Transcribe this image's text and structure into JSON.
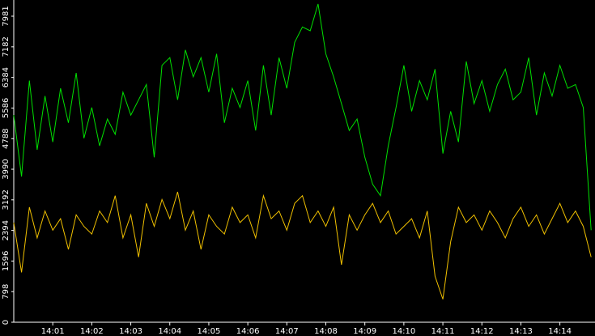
{
  "chart_data": {
    "type": "line",
    "x": [
      0,
      0.2,
      0.4,
      0.6,
      0.8,
      1,
      1.2,
      1.4,
      1.6,
      1.8,
      2,
      2.2,
      2.4,
      2.6,
      2.8,
      3,
      3.2,
      3.4,
      3.6,
      3.8,
      4,
      4.2,
      4.4,
      4.6,
      4.8,
      5,
      5.2,
      5.4,
      5.6,
      5.8,
      6,
      6.2,
      6.4,
      6.6,
      6.8,
      7,
      7.2,
      7.4,
      7.6,
      7.8,
      8,
      8.2,
      8.4,
      8.6,
      8.8,
      9,
      9.2,
      9.4,
      9.6,
      9.8,
      10,
      10.2,
      10.4,
      10.6,
      10.8,
      11,
      11.2,
      11.4,
      11.6,
      11.8,
      12,
      12.2,
      12.4,
      12.6,
      12.8,
      13,
      13.2,
      13.4,
      13.6,
      13.8,
      14,
      14.2,
      14.4,
      14.6,
      14.8
    ],
    "series": [
      {
        "color": "#00e000",
        "values": [
          5400,
          3800,
          6300,
          4500,
          5900,
          4700,
          6100,
          5200,
          6500,
          4800,
          5600,
          4600,
          5300,
          4900,
          6000,
          5400,
          5800,
          6200,
          4300,
          6700,
          6900,
          5800,
          7100,
          6400,
          6900,
          6000,
          7000,
          5200,
          6100,
          5600,
          6300,
          5000,
          6700,
          5400,
          6900,
          6100,
          7300,
          7700,
          7600,
          8300,
          7000,
          6400,
          5700,
          5000,
          5300,
          4300,
          3600,
          3300,
          4600,
          5600,
          6700,
          5500,
          6300,
          5800,
          6600,
          4400,
          5500,
          4700,
          6800,
          5700,
          6300,
          5500,
          6200,
          6600,
          5800,
          6000,
          6900,
          5400,
          6500,
          5900,
          6700,
          6100,
          6200,
          5600,
          2400
        ]
      },
      {
        "color": "#f0c000",
        "values": [
          2600,
          1300,
          3000,
          2200,
          2900,
          2400,
          2700,
          1900,
          2800,
          2500,
          2300,
          2900,
          2600,
          3300,
          2200,
          2800,
          1700,
          3100,
          2500,
          3200,
          2700,
          3400,
          2400,
          2900,
          1900,
          2800,
          2500,
          2300,
          3000,
          2600,
          2800,
          2200,
          3300,
          2700,
          2900,
          2400,
          3100,
          3300,
          2600,
          2900,
          2500,
          3000,
          1500,
          2800,
          2400,
          2800,
          3100,
          2600,
          2900,
          2300,
          2500,
          2700,
          2200,
          2900,
          1200,
          600,
          2100,
          3000,
          2600,
          2800,
          2400,
          2900,
          2600,
          2200,
          2700,
          3000,
          2500,
          2800,
          2300,
          2700,
          3100,
          2600,
          2900,
          2500,
          1700
        ]
      }
    ],
    "xlim": [
      0,
      14.9
    ],
    "xticks": [
      {
        "value": 1,
        "label": "14:01"
      },
      {
        "value": 2,
        "label": "14:02"
      },
      {
        "value": 3,
        "label": "14:03"
      },
      {
        "value": 4,
        "label": "14:04"
      },
      {
        "value": 5,
        "label": "14:05"
      },
      {
        "value": 6,
        "label": "14:06"
      },
      {
        "value": 7,
        "label": "14:07"
      },
      {
        "value": 8,
        "label": "14:08"
      },
      {
        "value": 9,
        "label": "14:09"
      },
      {
        "value": 10,
        "label": "14:10"
      },
      {
        "value": 11,
        "label": "14:11"
      },
      {
        "value": 12,
        "label": "14:12"
      },
      {
        "value": 13,
        "label": "14:13"
      },
      {
        "value": 14,
        "label": "14:14"
      }
    ],
    "ylim": [
      0,
      7981
    ],
    "yticks": [
      0,
      798,
      1596,
      2394,
      3192,
      3990,
      4788,
      5586,
      6384,
      7182,
      7981
    ]
  }
}
